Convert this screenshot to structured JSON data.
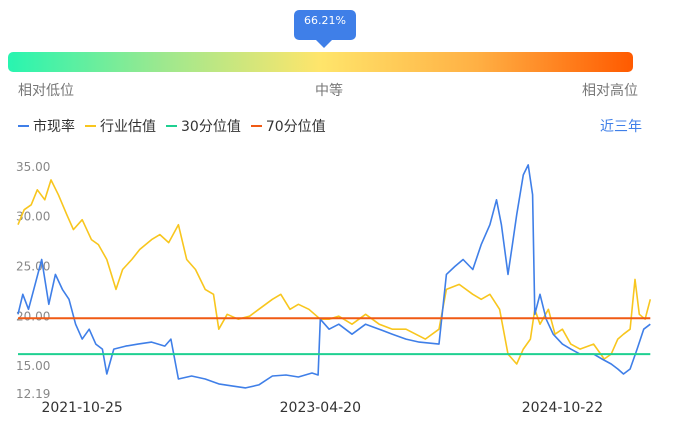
{
  "percentile_badge": "66.21%",
  "scale": {
    "low": "相对低位",
    "mid": "中等",
    "high": "相对高位"
  },
  "range_selector": "近三年",
  "chart_data": {
    "type": "line",
    "title": "",
    "xlabel": "",
    "ylabel": "",
    "x_range": [
      "2021-06-01",
      "2025-06-01"
    ],
    "ylim": [
      12.19,
      36.5
    ],
    "y_ticks": [
      12.19,
      15.0,
      20.0,
      25.0,
      30.0,
      35.0
    ],
    "y_tick_labels": [
      "12.19",
      "15.00",
      "20.00",
      "25.00",
      "30.00",
      "35.00"
    ],
    "x_tick_labels": [
      "2021-10-25",
      "2023-04-20",
      "2024-10-22"
    ],
    "x_tick_dates": [
      "2021-10-25",
      "2023-04-20",
      "2024-10-22"
    ],
    "grid": false,
    "legend": "top-left",
    "series": [
      {
        "name": "市现率",
        "color": "#3f7fe8",
        "points": [
          [
            "2021-06-01",
            20.0
          ],
          [
            "2021-06-12",
            22.0
          ],
          [
            "2021-06-25",
            20.5
          ],
          [
            "2021-07-10",
            23.0
          ],
          [
            "2021-07-25",
            25.5
          ],
          [
            "2021-08-10",
            21.0
          ],
          [
            "2021-08-25",
            24.0
          ],
          [
            "2021-09-10",
            22.5
          ],
          [
            "2021-09-25",
            21.5
          ],
          [
            "2021-10-10",
            19.0
          ],
          [
            "2021-10-25",
            17.5
          ],
          [
            "2021-11-10",
            18.5
          ],
          [
            "2021-11-25",
            17.0
          ],
          [
            "2021-12-10",
            16.5
          ],
          [
            "2021-12-20",
            14.0
          ],
          [
            "2022-01-05",
            16.5
          ],
          [
            "2022-02-01",
            16.8
          ],
          [
            "2022-03-01",
            17.0
          ],
          [
            "2022-04-01",
            17.2
          ],
          [
            "2022-05-01",
            16.8
          ],
          [
            "2022-05-15",
            17.5
          ],
          [
            "2022-06-01",
            13.5
          ],
          [
            "2022-07-01",
            13.8
          ],
          [
            "2022-08-01",
            13.5
          ],
          [
            "2022-09-01",
            13.0
          ],
          [
            "2022-10-01",
            12.8
          ],
          [
            "2022-11-01",
            12.6
          ],
          [
            "2022-12-01",
            12.9
          ],
          [
            "2023-01-01",
            13.8
          ],
          [
            "2023-02-01",
            13.9
          ],
          [
            "2023-03-01",
            13.7
          ],
          [
            "2023-04-01",
            14.1
          ],
          [
            "2023-04-15",
            13.9
          ],
          [
            "2023-04-20",
            19.5
          ],
          [
            "2023-05-10",
            18.5
          ],
          [
            "2023-06-01",
            19.0
          ],
          [
            "2023-07-01",
            18.0
          ],
          [
            "2023-08-01",
            19.0
          ],
          [
            "2023-09-01",
            18.5
          ],
          [
            "2023-10-01",
            18.0
          ],
          [
            "2023-11-01",
            17.5
          ],
          [
            "2023-12-01",
            17.2
          ],
          [
            "2024-01-15",
            17.0
          ],
          [
            "2024-02-01",
            24.0
          ],
          [
            "2024-02-20",
            24.8
          ],
          [
            "2024-03-10",
            25.5
          ],
          [
            "2024-04-01",
            24.5
          ],
          [
            "2024-04-20",
            27.0
          ],
          [
            "2024-05-10",
            29.0
          ],
          [
            "2024-05-25",
            31.5
          ],
          [
            "2024-06-05",
            29.0
          ],
          [
            "2024-06-20",
            24.0
          ],
          [
            "2024-06-30",
            27.0
          ],
          [
            "2024-07-10",
            30.0
          ],
          [
            "2024-07-25",
            34.0
          ],
          [
            "2024-08-05",
            35.0
          ],
          [
            "2024-08-15",
            32.0
          ],
          [
            "2024-08-20",
            20.0
          ],
          [
            "2024-09-01",
            22.0
          ],
          [
            "2024-09-15",
            19.5
          ],
          [
            "2024-10-01",
            18.0
          ],
          [
            "2024-10-22",
            17.0
          ],
          [
            "2024-11-10",
            16.5
          ],
          [
            "2024-12-01",
            16.0
          ],
          [
            "2025-01-01",
            16.0
          ],
          [
            "2025-01-20",
            15.5
          ],
          [
            "2025-02-10",
            15.0
          ],
          [
            "2025-02-25",
            14.5
          ],
          [
            "2025-03-10",
            14.0
          ],
          [
            "2025-03-25",
            14.5
          ],
          [
            "2025-04-10",
            16.5
          ],
          [
            "2025-04-25",
            18.5
          ],
          [
            "2025-05-10",
            19.0
          ]
        ]
      },
      {
        "name": "行业估值",
        "color": "#f8c61e",
        "points": [
          [
            "2021-06-01",
            29.0
          ],
          [
            "2021-06-15",
            30.5
          ],
          [
            "2021-07-01",
            31.0
          ],
          [
            "2021-07-15",
            32.5
          ],
          [
            "2021-08-01",
            31.5
          ],
          [
            "2021-08-15",
            33.5
          ],
          [
            "2021-09-01",
            32.0
          ],
          [
            "2021-09-20",
            30.0
          ],
          [
            "2021-10-05",
            28.5
          ],
          [
            "2021-10-25",
            29.5
          ],
          [
            "2021-11-15",
            27.5
          ],
          [
            "2021-12-01",
            27.0
          ],
          [
            "2021-12-20",
            25.5
          ],
          [
            "2022-01-10",
            22.5
          ],
          [
            "2022-01-25",
            24.5
          ],
          [
            "2022-02-15",
            25.5
          ],
          [
            "2022-03-05",
            26.5
          ],
          [
            "2022-04-01",
            27.5
          ],
          [
            "2022-04-20",
            28.0
          ],
          [
            "2022-05-10",
            27.2
          ],
          [
            "2022-06-01",
            29.0
          ],
          [
            "2022-06-20",
            25.5
          ],
          [
            "2022-07-10",
            24.5
          ],
          [
            "2022-08-01",
            22.5
          ],
          [
            "2022-08-20",
            22.0
          ],
          [
            "2022-09-01",
            18.5
          ],
          [
            "2022-09-20",
            20.0
          ],
          [
            "2022-10-15",
            19.5
          ],
          [
            "2022-11-10",
            19.8
          ],
          [
            "2022-12-01",
            20.5
          ],
          [
            "2023-01-01",
            21.5
          ],
          [
            "2023-01-20",
            22.0
          ],
          [
            "2023-02-10",
            20.5
          ],
          [
            "2023-03-01",
            21.0
          ],
          [
            "2023-03-25",
            20.5
          ],
          [
            "2023-04-20",
            19.5
          ],
          [
            "2023-05-10",
            19.5
          ],
          [
            "2023-06-01",
            19.8
          ],
          [
            "2023-07-01",
            19.0
          ],
          [
            "2023-08-01",
            20.0
          ],
          [
            "2023-09-01",
            19.0
          ],
          [
            "2023-10-01",
            18.5
          ],
          [
            "2023-11-01",
            18.5
          ],
          [
            "2023-12-15",
            17.5
          ],
          [
            "2024-01-15",
            18.5
          ],
          [
            "2024-02-01",
            22.5
          ],
          [
            "2024-03-01",
            23.0
          ],
          [
            "2024-04-01",
            22.0
          ],
          [
            "2024-04-20",
            21.5
          ],
          [
            "2024-05-10",
            22.0
          ],
          [
            "2024-06-01",
            20.5
          ],
          [
            "2024-06-20",
            16.0
          ],
          [
            "2024-07-10",
            15.0
          ],
          [
            "2024-07-25",
            16.5
          ],
          [
            "2024-08-10",
            17.5
          ],
          [
            "2024-08-20",
            20.5
          ],
          [
            "2024-09-01",
            19.0
          ],
          [
            "2024-09-20",
            20.5
          ],
          [
            "2024-10-05",
            18.0
          ],
          [
            "2024-10-22",
            18.5
          ],
          [
            "2024-11-10",
            17.0
          ],
          [
            "2024-12-01",
            16.5
          ],
          [
            "2025-01-01",
            17.0
          ],
          [
            "2025-01-25",
            15.5
          ],
          [
            "2025-02-10",
            16.0
          ],
          [
            "2025-02-25",
            17.5
          ],
          [
            "2025-03-10",
            18.0
          ],
          [
            "2025-03-25",
            18.5
          ],
          [
            "2025-04-05",
            23.5
          ],
          [
            "2025-04-15",
            20.0
          ],
          [
            "2025-04-28",
            19.5
          ],
          [
            "2025-05-10",
            21.5
          ]
        ]
      },
      {
        "name": "30分位值",
        "color": "#1fd091",
        "points": [
          [
            "2021-06-01",
            16.0
          ],
          [
            "2025-05-10",
            16.0
          ]
        ]
      },
      {
        "name": "70分位值",
        "color": "#f05a14",
        "points": [
          [
            "2021-06-01",
            19.6
          ],
          [
            "2025-05-10",
            19.6
          ]
        ]
      }
    ]
  }
}
